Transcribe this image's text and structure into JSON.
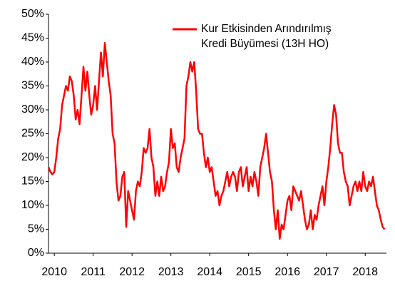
{
  "chart_data": {
    "type": "line",
    "xlim": [
      2009.85,
      2018.51
    ],
    "xticks": [
      2010,
      2011,
      2012,
      2013,
      2014,
      2015,
      2016,
      2017,
      2018
    ],
    "ylim": [
      0,
      50
    ],
    "yticks": [
      {
        "value": 0,
        "label": "0%"
      },
      {
        "value": 5,
        "label": "5%"
      },
      {
        "value": 10,
        "label": "10%"
      },
      {
        "value": 15,
        "label": "15%"
      },
      {
        "value": 20,
        "label": "20%"
      },
      {
        "value": 25,
        "label": "25%"
      },
      {
        "value": 30,
        "label": "30%"
      },
      {
        "value": 35,
        "label": "35%"
      },
      {
        "value": 40,
        "label": "40%"
      },
      {
        "value": 45,
        "label": "45%"
      },
      {
        "value": 50,
        "label": "50%"
      }
    ],
    "grid": false,
    "x": [
      2009.85,
      2009.9,
      2009.95,
      2010.0,
      2010.05,
      2010.1,
      2010.15,
      2010.2,
      2010.25,
      2010.3,
      2010.35,
      2010.4,
      2010.45,
      2010.5,
      2010.55,
      2010.6,
      2010.65,
      2010.7,
      2010.75,
      2010.8,
      2010.85,
      2010.9,
      2010.95,
      2011.0,
      2011.05,
      2011.1,
      2011.15,
      2011.2,
      2011.25,
      2011.3,
      2011.35,
      2011.4,
      2011.45,
      2011.5,
      2011.55,
      2011.6,
      2011.65,
      2011.7,
      2011.75,
      2011.8,
      2011.85,
      2011.9,
      2011.95,
      2012.0,
      2012.05,
      2012.1,
      2012.15,
      2012.2,
      2012.25,
      2012.3,
      2012.35,
      2012.4,
      2012.45,
      2012.5,
      2012.55,
      2012.6,
      2012.65,
      2012.7,
      2012.75,
      2012.8,
      2012.85,
      2012.9,
      2012.95,
      2013.0,
      2013.05,
      2013.1,
      2013.15,
      2013.2,
      2013.25,
      2013.3,
      2013.35,
      2013.4,
      2013.45,
      2013.5,
      2013.55,
      2013.6,
      2013.65,
      2013.7,
      2013.75,
      2013.8,
      2013.85,
      2013.9,
      2013.95,
      2014.0,
      2014.05,
      2014.1,
      2014.15,
      2014.2,
      2014.25,
      2014.3,
      2014.35,
      2014.4,
      2014.45,
      2014.5,
      2014.55,
      2014.6,
      2014.65,
      2014.7,
      2014.75,
      2014.8,
      2014.85,
      2014.9,
      2014.95,
      2015.0,
      2015.05,
      2015.1,
      2015.15,
      2015.2,
      2015.25,
      2015.3,
      2015.35,
      2015.4,
      2015.45,
      2015.5,
      2015.55,
      2015.6,
      2015.65,
      2015.7,
      2015.75,
      2015.8,
      2015.85,
      2015.9,
      2015.95,
      2016.0,
      2016.05,
      2016.1,
      2016.15,
      2016.2,
      2016.25,
      2016.3,
      2016.35,
      2016.4,
      2016.45,
      2016.5,
      2016.55,
      2016.6,
      2016.65,
      2016.7,
      2016.75,
      2016.8,
      2016.85,
      2016.9,
      2016.95,
      2017.0,
      2017.05,
      2017.1,
      2017.15,
      2017.2,
      2017.25,
      2017.3,
      2017.35,
      2017.4,
      2017.45,
      2017.5,
      2017.55,
      2017.6,
      2017.65,
      2017.7,
      2017.75,
      2017.8,
      2017.85,
      2017.9,
      2017.95,
      2018.0,
      2018.05,
      2018.1,
      2018.15,
      2018.2,
      2018.25,
      2018.3,
      2018.35,
      2018.4,
      2018.45,
      2018.5
    ],
    "series": [
      {
        "name": "Kur Etkisinden Arındırılmış Kredi Büyümesi (13H HO)",
        "color": "#ff0000",
        "values": [
          18,
          17,
          16.5,
          17,
          20,
          24,
          26,
          31,
          33,
          35,
          34,
          37,
          36,
          33,
          28,
          30,
          27,
          33,
          39,
          34,
          38,
          33,
          29,
          31,
          35,
          30,
          36,
          42,
          37,
          44,
          40,
          36,
          33,
          25,
          23,
          15,
          11,
          12,
          16,
          17,
          5.5,
          13,
          11,
          9,
          7,
          13,
          15,
          14,
          17,
          22,
          21,
          22,
          26,
          20,
          18,
          12,
          15,
          12,
          16,
          13,
          14,
          17,
          19,
          26,
          22,
          23,
          18,
          17,
          20,
          22,
          24,
          35,
          37,
          40,
          38,
          40,
          34,
          26,
          25,
          25,
          21,
          18,
          20,
          17,
          18,
          15,
          12,
          13,
          10,
          12,
          13,
          15,
          17,
          14,
          16,
          17,
          16,
          13,
          17,
          18,
          14,
          16,
          18,
          13,
          16,
          14,
          17,
          15,
          12,
          18,
          20,
          22,
          25,
          21,
          17,
          15,
          9,
          5,
          9,
          3,
          6,
          5,
          8,
          11,
          12,
          9,
          14,
          13,
          12,
          11,
          13,
          10,
          7,
          5,
          6,
          9,
          5,
          8,
          7,
          10,
          12,
          14,
          10,
          15,
          18,
          22,
          27,
          31,
          29,
          23,
          21,
          21,
          17,
          15,
          14,
          10,
          12,
          14,
          15,
          13,
          15,
          13,
          17,
          14,
          13,
          15,
          14,
          16,
          13,
          10,
          9,
          7,
          5.5,
          5
        ]
      }
    ]
  }
}
